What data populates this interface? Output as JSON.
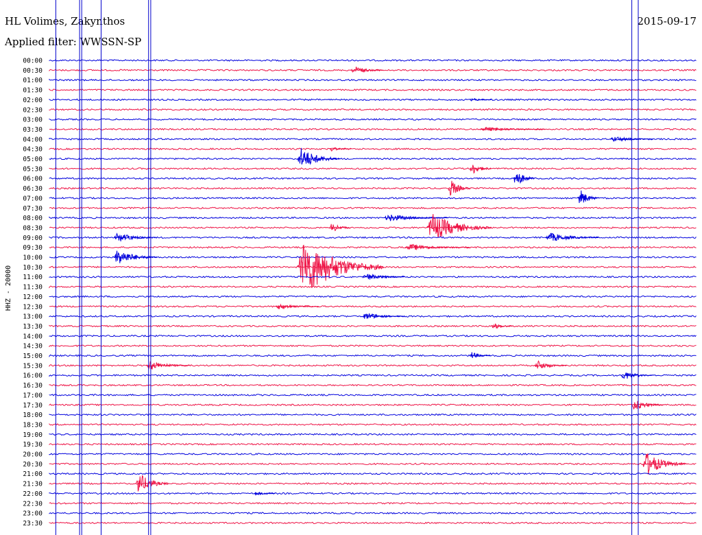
{
  "header": {
    "station": "HL Volimes, Zakynthos",
    "filter": "Applied filter: WWSSN-SP",
    "date": "2015-09-17"
  },
  "chart_data": {
    "type": "line",
    "title": "HL Volimes, Zakynthos",
    "subtitle": "Applied filter: WWSSN-SP",
    "ylabel": "HHZ - 20000",
    "colors": {
      "even_rows": "#0000dd",
      "odd_rows": "#ee1144"
    },
    "rows": [
      "00:00",
      "00:30",
      "01:00",
      "01:30",
      "02:00",
      "02:30",
      "03:00",
      "03:30",
      "04:00",
      "04:30",
      "05:00",
      "05:30",
      "06:00",
      "06:30",
      "07:00",
      "07:30",
      "08:00",
      "08:30",
      "09:00",
      "09:30",
      "10:00",
      "10:30",
      "11:00",
      "11:30",
      "12:00",
      "12:30",
      "13:00",
      "13:30",
      "14:00",
      "14:30",
      "15:00",
      "15:30",
      "16:00",
      "16:30",
      "17:00",
      "17:30",
      "18:00",
      "18:30",
      "19:00",
      "19:30",
      "20:00",
      "20:30",
      "21:00",
      "21:30",
      "22:00",
      "22:30",
      "23:00",
      "23:30"
    ],
    "events": [
      {
        "row": "00:30",
        "minute": 14.0,
        "amplitude": 0.9,
        "duration": 1.5
      },
      {
        "row": "02:00",
        "minute": 19.5,
        "amplitude": 0.4,
        "duration": 1.0
      },
      {
        "row": "03:30",
        "minute": 20.0,
        "amplitude": 0.5,
        "duration": 3.0
      },
      {
        "row": "04:00",
        "minute": 26.0,
        "amplitude": 0.6,
        "duration": 2.0
      },
      {
        "row": "04:30",
        "minute": 13.0,
        "amplitude": 0.5,
        "duration": 1.0
      },
      {
        "row": "05:00",
        "minute": 11.5,
        "amplitude": 2.4,
        "duration": 2.0
      },
      {
        "row": "05:30",
        "minute": 19.5,
        "amplitude": 1.4,
        "duration": 1.0
      },
      {
        "row": "06:00",
        "minute": 21.5,
        "amplitude": 2.2,
        "duration": 1.0
      },
      {
        "row": "06:30",
        "minute": 18.5,
        "amplitude": 2.0,
        "duration": 1.0
      },
      {
        "row": "07:00",
        "minute": 24.5,
        "amplitude": 2.0,
        "duration": 1.0
      },
      {
        "row": "08:00",
        "minute": 15.5,
        "amplitude": 0.8,
        "duration": 3.0
      },
      {
        "row": "08:30",
        "minute": 17.5,
        "amplitude": 3.0,
        "duration": 3.0
      },
      {
        "row": "08:30",
        "minute": 13.0,
        "amplitude": 1.0,
        "duration": 1.0
      },
      {
        "row": "09:00",
        "minute": 3.0,
        "amplitude": 1.0,
        "duration": 2.0
      },
      {
        "row": "09:00",
        "minute": 23.0,
        "amplitude": 1.0,
        "duration": 2.5
      },
      {
        "row": "09:30",
        "minute": 16.5,
        "amplitude": 0.7,
        "duration": 3.0
      },
      {
        "row": "10:00",
        "minute": 3.0,
        "amplitude": 1.8,
        "duration": 2.0
      },
      {
        "row": "10:30",
        "minute": 11.5,
        "amplitude": 6.0,
        "duration": 4.0
      },
      {
        "row": "11:00",
        "minute": 14.5,
        "amplitude": 0.8,
        "duration": 2.0
      },
      {
        "row": "12:30",
        "minute": 10.5,
        "amplitude": 0.6,
        "duration": 2.0
      },
      {
        "row": "13:00",
        "minute": 14.5,
        "amplitude": 0.8,
        "duration": 2.0
      },
      {
        "row": "13:30",
        "minute": 20.5,
        "amplitude": 0.8,
        "duration": 1.0
      },
      {
        "row": "15:00",
        "minute": 19.5,
        "amplitude": 0.8,
        "duration": 1.0
      },
      {
        "row": "15:30",
        "minute": 4.5,
        "amplitude": 1.0,
        "duration": 2.0
      },
      {
        "row": "15:30",
        "minute": 22.5,
        "amplitude": 1.1,
        "duration": 1.5
      },
      {
        "row": "16:00",
        "minute": 26.5,
        "amplitude": 1.0,
        "duration": 1.5
      },
      {
        "row": "17:30",
        "minute": 27.0,
        "amplitude": 1.2,
        "duration": 1.5
      },
      {
        "row": "20:30",
        "minute": 27.5,
        "amplitude": 2.6,
        "duration": 2.0
      },
      {
        "row": "21:30",
        "minute": 4.0,
        "amplitude": 2.4,
        "duration": 1.5
      },
      {
        "row": "22:00",
        "minute": 9.5,
        "amplitude": 0.5,
        "duration": 1.0
      }
    ],
    "markers_minutes": [
      0.3,
      1.4,
      1.5,
      2.4,
      4.6,
      4.7,
      27.0,
      27.3
    ]
  }
}
